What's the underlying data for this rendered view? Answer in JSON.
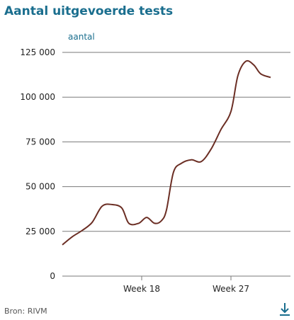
{
  "header": {
    "title": "Aantal uitgevoerde tests"
  },
  "footer": {
    "source": "Bron: RIVM"
  },
  "icons": {
    "download": "download-icon"
  },
  "colors": {
    "title": "#1a6e8e",
    "line": "#6b2e24",
    "grid": "#7a7a7a",
    "axis_label": "#1a6e8e",
    "tick_text": "#222222",
    "download": "#1a6e8e"
  },
  "chart_data": {
    "type": "line",
    "title": "Aantal uitgevoerde tests",
    "ylabel": "aantal",
    "xlabel": "",
    "ylim": [
      0,
      125000
    ],
    "xlim": [
      10,
      33
    ],
    "yticks": [
      0,
      25000,
      50000,
      75000,
      100000,
      125000
    ],
    "ytick_labels": [
      "0",
      "25 000",
      "50 000",
      "75 000",
      "100 000",
      "125 000"
    ],
    "xticks": [
      18,
      27
    ],
    "xtick_labels": [
      "Week 18",
      "Week 27"
    ],
    "grid": "horizontal",
    "series": [
      {
        "values": [
          {
            "x": 10.0,
            "y": 17500
          },
          {
            "x": 11.0,
            "y": 22000
          },
          {
            "x": 12.0,
            "y": 25500
          },
          {
            "x": 13.0,
            "y": 30000
          },
          {
            "x": 14.0,
            "y": 39000
          },
          {
            "x": 15.0,
            "y": 40000
          },
          {
            "x": 16.0,
            "y": 38000
          },
          {
            "x": 16.7,
            "y": 29500
          },
          {
            "x": 17.7,
            "y": 29500
          },
          {
            "x": 18.5,
            "y": 32800
          },
          {
            "x": 19.3,
            "y": 29500
          },
          {
            "x": 20.0,
            "y": 31000
          },
          {
            "x": 20.5,
            "y": 37000
          },
          {
            "x": 21.2,
            "y": 58000
          },
          {
            "x": 22.0,
            "y": 63000
          },
          {
            "x": 23.0,
            "y": 65000
          },
          {
            "x": 24.0,
            "y": 64000
          },
          {
            "x": 25.0,
            "y": 71000
          },
          {
            "x": 26.0,
            "y": 82000
          },
          {
            "x": 27.0,
            "y": 92000
          },
          {
            "x": 27.7,
            "y": 112000
          },
          {
            "x": 28.5,
            "y": 120000
          },
          {
            "x": 29.3,
            "y": 118000
          },
          {
            "x": 30.0,
            "y": 113000
          },
          {
            "x": 31.0,
            "y": 111000
          }
        ]
      }
    ]
  }
}
